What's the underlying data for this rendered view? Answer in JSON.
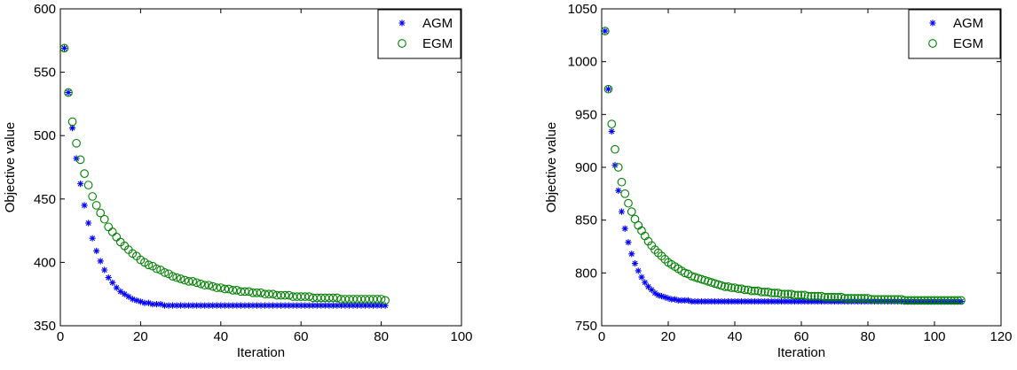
{
  "chart_data": [
    {
      "type": "scatter",
      "title": "",
      "xlabel": "Iteration",
      "ylabel": "Objective value",
      "xlim": [
        0,
        100
      ],
      "ylim": [
        350,
        600
      ],
      "xticks": [
        0,
        20,
        40,
        60,
        80,
        100
      ],
      "yticks": [
        350,
        400,
        450,
        500,
        550,
        600
      ],
      "legend_position": "top-right",
      "grid": false,
      "series": [
        {
          "name": "AGM",
          "marker": "asterisk",
          "color": "#0000ff",
          "x_start": 1,
          "x_step": 1,
          "values": [
            569,
            534,
            506,
            482,
            462,
            445,
            431,
            419,
            409,
            401,
            394,
            388,
            384,
            380,
            377,
            375,
            373,
            371,
            370,
            369,
            368,
            368,
            367,
            367,
            367,
            366,
            366,
            366,
            366,
            366,
            366,
            366,
            366,
            366,
            366,
            366,
            366,
            366,
            366,
            366,
            366,
            366,
            366,
            366,
            366,
            366,
            366,
            366,
            366,
            366,
            366,
            366,
            366,
            366,
            366,
            366,
            366,
            366,
            366,
            366,
            366,
            366,
            366,
            366,
            366,
            366,
            366,
            366,
            366,
            366,
            366,
            366,
            366,
            366,
            366,
            366,
            366,
            366,
            366,
            366,
            366
          ]
        },
        {
          "name": "EGM",
          "marker": "circle",
          "color": "#008000",
          "x_start": 1,
          "x_step": 1,
          "values": [
            569,
            534,
            511,
            494,
            481,
            470,
            461,
            452,
            445,
            439,
            434,
            428,
            424,
            420,
            416,
            413,
            410,
            407,
            405,
            402,
            400,
            398,
            397,
            395,
            394,
            392,
            391,
            389,
            388,
            387,
            386,
            385,
            385,
            384,
            383,
            382,
            382,
            381,
            380,
            380,
            379,
            379,
            378,
            378,
            377,
            377,
            377,
            376,
            376,
            376,
            375,
            375,
            375,
            374,
            374,
            374,
            374,
            373,
            373,
            373,
            373,
            373,
            372,
            372,
            372,
            372,
            372,
            372,
            372,
            371,
            371,
            371,
            371,
            371,
            371,
            371,
            371,
            371,
            371,
            371,
            370
          ]
        }
      ]
    },
    {
      "type": "scatter",
      "title": "",
      "xlabel": "Iteration",
      "ylabel": "Objective value",
      "xlim": [
        0,
        120
      ],
      "ylim": [
        750,
        1050
      ],
      "xticks": [
        0,
        20,
        40,
        60,
        80,
        100,
        120
      ],
      "yticks": [
        750,
        800,
        850,
        900,
        950,
        1000,
        1050
      ],
      "legend_position": "top-right",
      "grid": false,
      "series": [
        {
          "name": "AGM",
          "marker": "asterisk",
          "color": "#0000ff",
          "x_start": 1,
          "x_step": 1,
          "values": [
            1029,
            974,
            934,
            902,
            878,
            858,
            842,
            829,
            818,
            809,
            802,
            796,
            791,
            787,
            784,
            781,
            779,
            778,
            777,
            776,
            775,
            775,
            774,
            774,
            774,
            774,
            773,
            773,
            773,
            773,
            773,
            773,
            773,
            773,
            773,
            773,
            773,
            773,
            773,
            773,
            773,
            773,
            773,
            773,
            773,
            773,
            773,
            773,
            773,
            773,
            773,
            773,
            773,
            773,
            773,
            773,
            773,
            773,
            773,
            773,
            773,
            773,
            773,
            773,
            773,
            773,
            773,
            773,
            773,
            773,
            773,
            773,
            773,
            773,
            773,
            773,
            773,
            773,
            773,
            773,
            773,
            773,
            773,
            773,
            773,
            773,
            773,
            773,
            773,
            773,
            773,
            773,
            773,
            773,
            773,
            773,
            773,
            773,
            773,
            773,
            773,
            773,
            773,
            773,
            773,
            773,
            773,
            773
          ]
        },
        {
          "name": "EGM",
          "marker": "circle",
          "color": "#008000",
          "x_start": 1,
          "x_step": 1,
          "values": [
            1029,
            974,
            941,
            917,
            900,
            886,
            875,
            866,
            858,
            851,
            845,
            840,
            835,
            830,
            826,
            822,
            819,
            816,
            813,
            810,
            808,
            806,
            804,
            802,
            800,
            799,
            797,
            796,
            795,
            794,
            793,
            792,
            791,
            790,
            789,
            788,
            787,
            787,
            786,
            786,
            785,
            785,
            784,
            784,
            783,
            783,
            783,
            782,
            782,
            782,
            781,
            781,
            781,
            780,
            780,
            780,
            780,
            779,
            779,
            779,
            779,
            778,
            778,
            778,
            778,
            778,
            777,
            777,
            777,
            777,
            777,
            777,
            776,
            776,
            776,
            776,
            776,
            776,
            776,
            776,
            775,
            775,
            775,
            775,
            775,
            775,
            775,
            775,
            775,
            775,
            774,
            774,
            774,
            774,
            774,
            774,
            774,
            774,
            774,
            774,
            774,
            774,
            774,
            774,
            774,
            774,
            774,
            774
          ]
        }
      ]
    }
  ]
}
